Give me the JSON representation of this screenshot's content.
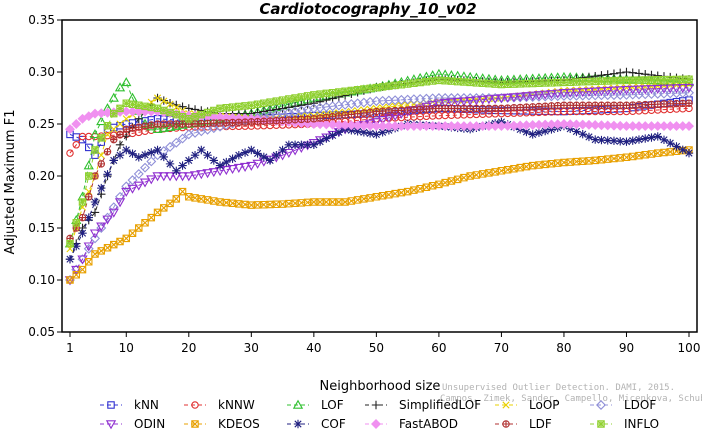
{
  "chart_data": {
    "type": "line",
    "title": "Cardiotocography_10_v02",
    "xlabel": "Neighborhood size",
    "ylabel": "Adjusted Maximum F1",
    "xlim": [
      1,
      100
    ],
    "ylim": [
      0.05,
      0.35
    ],
    "x_ticks": [
      1,
      10,
      20,
      30,
      40,
      50,
      60,
      70,
      80,
      90,
      100
    ],
    "y_ticks": [
      "0.05",
      "0.10",
      "0.15",
      "0.20",
      "0.25",
      "0.30",
      "0.35"
    ],
    "grid": false,
    "legend_position": "bottom",
    "watermark": [
      "Unsupervised Outlier Detection. DAMI, 2015.",
      "Campos, Zimek, Sander, Campello, Micenkova, Schubert, Assent, Houle"
    ],
    "series": [
      {
        "name": "kNN",
        "color": "#3030d0",
        "marker": "square",
        "points": [
          [
            1,
            0.24
          ],
          [
            3,
            0.235
          ],
          [
            5,
            0.22
          ],
          [
            7,
            0.245
          ],
          [
            10,
            0.25
          ],
          [
            15,
            0.255
          ],
          [
            20,
            0.253
          ],
          [
            30,
            0.255
          ],
          [
            40,
            0.258
          ],
          [
            50,
            0.26
          ],
          [
            60,
            0.265
          ],
          [
            70,
            0.263
          ],
          [
            80,
            0.262
          ],
          [
            90,
            0.265
          ],
          [
            100,
            0.273
          ]
        ]
      },
      {
        "name": "kNNW",
        "color": "#e03030",
        "marker": "circle",
        "points": [
          [
            1,
            0.222
          ],
          [
            3,
            0.238
          ],
          [
            5,
            0.238
          ],
          [
            10,
            0.24
          ],
          [
            15,
            0.245
          ],
          [
            20,
            0.247
          ],
          [
            30,
            0.248
          ],
          [
            40,
            0.25
          ],
          [
            50,
            0.255
          ],
          [
            60,
            0.258
          ],
          [
            70,
            0.26
          ],
          [
            80,
            0.262
          ],
          [
            90,
            0.262
          ],
          [
            100,
            0.265
          ]
        ]
      },
      {
        "name": "LOF",
        "color": "#30c030",
        "marker": "triangle",
        "points": [
          [
            1,
            0.135
          ],
          [
            3,
            0.18
          ],
          [
            5,
            0.24
          ],
          [
            7,
            0.265
          ],
          [
            9,
            0.285
          ],
          [
            10,
            0.29
          ],
          [
            11,
            0.275
          ],
          [
            13,
            0.25
          ],
          [
            15,
            0.245
          ],
          [
            20,
            0.25
          ],
          [
            30,
            0.26
          ],
          [
            40,
            0.275
          ],
          [
            50,
            0.285
          ],
          [
            60,
            0.298
          ],
          [
            70,
            0.292
          ],
          [
            80,
            0.295
          ],
          [
            90,
            0.293
          ],
          [
            100,
            0.29
          ]
        ]
      },
      {
        "name": "SimplifiedLOF",
        "color": "#222222",
        "marker": "plus",
        "points": [
          [
            1,
            0.12
          ],
          [
            3,
            0.15
          ],
          [
            5,
            0.165
          ],
          [
            7,
            0.2
          ],
          [
            9,
            0.23
          ],
          [
            12,
            0.255
          ],
          [
            15,
            0.275
          ],
          [
            17,
            0.27
          ],
          [
            20,
            0.265
          ],
          [
            25,
            0.26
          ],
          [
            30,
            0.26
          ],
          [
            40,
            0.27
          ],
          [
            50,
            0.285
          ],
          [
            60,
            0.293
          ],
          [
            70,
            0.29
          ],
          [
            80,
            0.292
          ],
          [
            90,
            0.3
          ],
          [
            100,
            0.293
          ]
        ]
      },
      {
        "name": "LoOP",
        "color": "#e8d000",
        "marker": "x",
        "points": [
          [
            1,
            0.13
          ],
          [
            3,
            0.17
          ],
          [
            5,
            0.2
          ],
          [
            7,
            0.24
          ],
          [
            10,
            0.255
          ],
          [
            15,
            0.275
          ],
          [
            20,
            0.26
          ],
          [
            30,
            0.255
          ],
          [
            40,
            0.258
          ],
          [
            50,
            0.265
          ],
          [
            60,
            0.272
          ],
          [
            70,
            0.275
          ],
          [
            80,
            0.282
          ],
          [
            90,
            0.285
          ],
          [
            100,
            0.288
          ]
        ]
      },
      {
        "name": "LDOF",
        "color": "#9090d8",
        "marker": "diamond",
        "points": [
          [
            1,
            0.1
          ],
          [
            3,
            0.12
          ],
          [
            5,
            0.14
          ],
          [
            7,
            0.16
          ],
          [
            10,
            0.19
          ],
          [
            15,
            0.22
          ],
          [
            20,
            0.24
          ],
          [
            30,
            0.255
          ],
          [
            40,
            0.265
          ],
          [
            50,
            0.272
          ],
          [
            60,
            0.275
          ],
          [
            70,
            0.275
          ],
          [
            80,
            0.277
          ],
          [
            90,
            0.278
          ],
          [
            100,
            0.28
          ]
        ]
      },
      {
        "name": "ODIN",
        "color": "#9030d0",
        "marker": "triangle-down",
        "points": [
          [
            1,
            0.1
          ],
          [
            3,
            0.12
          ],
          [
            5,
            0.145
          ],
          [
            8,
            0.165
          ],
          [
            10,
            0.185
          ],
          [
            15,
            0.2
          ],
          [
            20,
            0.2
          ],
          [
            25,
            0.205
          ],
          [
            30,
            0.21
          ],
          [
            35,
            0.22
          ],
          [
            40,
            0.232
          ],
          [
            45,
            0.245
          ],
          [
            50,
            0.252
          ],
          [
            55,
            0.262
          ],
          [
            60,
            0.27
          ],
          [
            70,
            0.275
          ],
          [
            80,
            0.28
          ],
          [
            90,
            0.283
          ],
          [
            100,
            0.285
          ]
        ]
      },
      {
        "name": "KDEOS",
        "color": "#e8a000",
        "marker": "square-x",
        "points": [
          [
            1,
            0.1
          ],
          [
            3,
            0.11
          ],
          [
            5,
            0.125
          ],
          [
            10,
            0.14
          ],
          [
            15,
            0.165
          ],
          [
            18,
            0.178
          ],
          [
            19,
            0.185
          ],
          [
            20,
            0.18
          ],
          [
            25,
            0.175
          ],
          [
            30,
            0.172
          ],
          [
            35,
            0.173
          ],
          [
            40,
            0.175
          ],
          [
            45,
            0.175
          ],
          [
            50,
            0.18
          ],
          [
            55,
            0.185
          ],
          [
            60,
            0.192
          ],
          [
            65,
            0.2
          ],
          [
            70,
            0.205
          ],
          [
            75,
            0.21
          ],
          [
            80,
            0.213
          ],
          [
            85,
            0.215
          ],
          [
            90,
            0.218
          ],
          [
            95,
            0.222
          ],
          [
            100,
            0.225
          ]
        ]
      },
      {
        "name": "COF",
        "color": "#202080",
        "marker": "star",
        "points": [
          [
            1,
            0.12
          ],
          [
            3,
            0.145
          ],
          [
            5,
            0.175
          ],
          [
            8,
            0.215
          ],
          [
            10,
            0.225
          ],
          [
            12,
            0.218
          ],
          [
            15,
            0.225
          ],
          [
            18,
            0.205
          ],
          [
            20,
            0.215
          ],
          [
            22,
            0.225
          ],
          [
            25,
            0.21
          ],
          [
            28,
            0.22
          ],
          [
            30,
            0.225
          ],
          [
            33,
            0.215
          ],
          [
            36,
            0.23
          ],
          [
            40,
            0.23
          ],
          [
            45,
            0.245
          ],
          [
            50,
            0.24
          ],
          [
            55,
            0.25
          ],
          [
            60,
            0.248
          ],
          [
            65,
            0.245
          ],
          [
            70,
            0.252
          ],
          [
            75,
            0.24
          ],
          [
            80,
            0.248
          ],
          [
            85,
            0.235
          ],
          [
            90,
            0.233
          ],
          [
            95,
            0.238
          ],
          [
            100,
            0.222
          ]
        ]
      },
      {
        "name": "FastABOD",
        "color": "#f090f0",
        "marker": "diamond-filled",
        "points": [
          [
            1,
            0.245
          ],
          [
            3,
            0.255
          ],
          [
            5,
            0.26
          ],
          [
            10,
            0.262
          ],
          [
            15,
            0.262
          ],
          [
            20,
            0.258
          ],
          [
            30,
            0.255
          ],
          [
            40,
            0.25
          ],
          [
            50,
            0.248
          ],
          [
            60,
            0.248
          ],
          [
            70,
            0.248
          ],
          [
            80,
            0.25
          ],
          [
            90,
            0.248
          ],
          [
            100,
            0.248
          ]
        ]
      },
      {
        "name": "LDF",
        "color": "#b03030",
        "marker": "circle-plus",
        "points": [
          [
            1,
            0.14
          ],
          [
            3,
            0.16
          ],
          [
            5,
            0.2
          ],
          [
            8,
            0.235
          ],
          [
            10,
            0.245
          ],
          [
            15,
            0.25
          ],
          [
            20,
            0.25
          ],
          [
            30,
            0.252
          ],
          [
            40,
            0.255
          ],
          [
            50,
            0.262
          ],
          [
            60,
            0.265
          ],
          [
            70,
            0.265
          ],
          [
            80,
            0.268
          ],
          [
            90,
            0.268
          ],
          [
            100,
            0.27
          ]
        ]
      },
      {
        "name": "INFLO",
        "color": "#90d030",
        "marker": "square-star",
        "points": [
          [
            1,
            0.135
          ],
          [
            3,
            0.175
          ],
          [
            5,
            0.225
          ],
          [
            8,
            0.26
          ],
          [
            10,
            0.27
          ],
          [
            15,
            0.265
          ],
          [
            20,
            0.255
          ],
          [
            25,
            0.265
          ],
          [
            30,
            0.268
          ],
          [
            40,
            0.278
          ],
          [
            50,
            0.285
          ],
          [
            60,
            0.292
          ],
          [
            70,
            0.288
          ],
          [
            80,
            0.29
          ],
          [
            90,
            0.292
          ],
          [
            100,
            0.293
          ]
        ]
      }
    ]
  }
}
